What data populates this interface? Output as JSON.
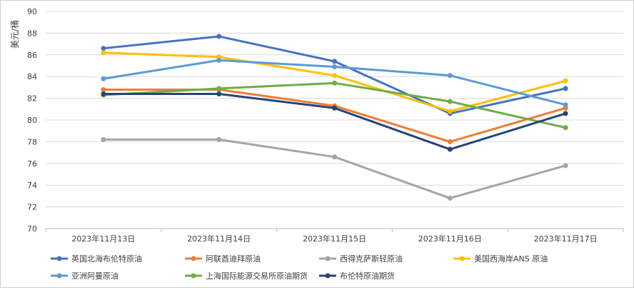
{
  "chart_data": {
    "type": "line",
    "title": "",
    "xlabel": "",
    "ylabel": "美元/桶",
    "ylim": [
      70,
      90
    ],
    "ytick_step": 2,
    "grid": "horizontal",
    "legend_position": "bottom",
    "categories": [
      "2023年11月13日",
      "2023年11月14日",
      "2023年11月15日",
      "2023年11月16日",
      "2023年11月17日"
    ],
    "series": [
      {
        "name": "英国北海布伦特原油",
        "color": "#4472C4",
        "values": [
          86.6,
          87.7,
          85.4,
          80.6,
          82.9
        ]
      },
      {
        "name": "阿联酋迪拜原油",
        "color": "#ED7D31",
        "values": [
          82.8,
          82.8,
          81.3,
          78.0,
          81.1
        ]
      },
      {
        "name": "西得克萨斯轻原油",
        "color": "#A5A5A5",
        "values": [
          78.2,
          78.2,
          76.6,
          72.8,
          75.8
        ]
      },
      {
        "name": "美国西海岸ANS 原油",
        "color": "#FFC000",
        "values": [
          86.2,
          85.8,
          84.1,
          80.8,
          83.6
        ]
      },
      {
        "name": "亚洲阿曼原油",
        "color": "#5B9BD5",
        "values": [
          83.8,
          85.5,
          84.9,
          84.1,
          81.4
        ]
      },
      {
        "name": "上海国际能源交易所原油期货",
        "color": "#70AD47",
        "values": [
          82.3,
          82.9,
          83.4,
          81.7,
          79.3
        ]
      },
      {
        "name": "布伦特原油期货",
        "color": "#264478",
        "values": [
          82.4,
          82.4,
          81.1,
          77.3,
          80.6
        ]
      }
    ]
  }
}
